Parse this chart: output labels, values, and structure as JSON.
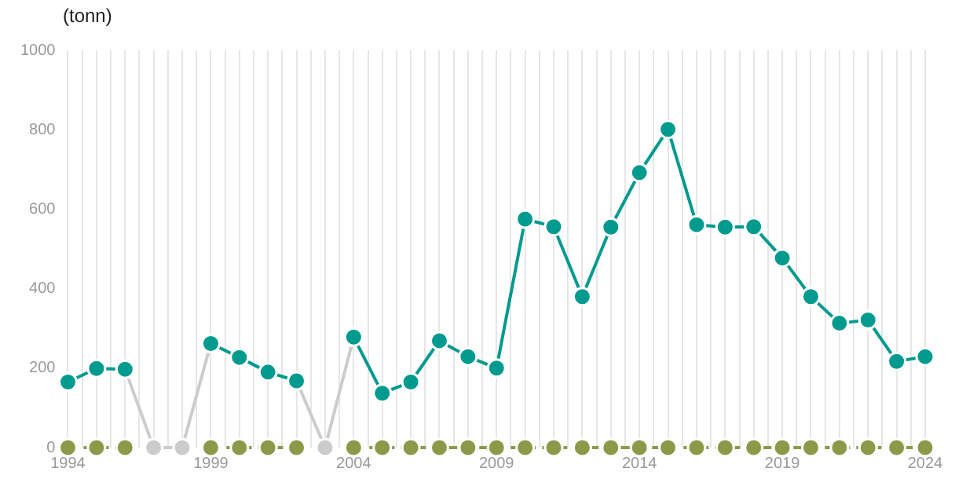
{
  "chart_data": {
    "type": "line",
    "ylabel": "(tonn)",
    "x": [
      1994,
      1995,
      1996,
      1997,
      1998,
      1999,
      2000,
      2001,
      2002,
      2003,
      2004,
      2005,
      2006,
      2007,
      2008,
      2009,
      2010,
      2011,
      2012,
      2013,
      2014,
      2015,
      2016,
      2017,
      2018,
      2019,
      2020,
      2021,
      2022,
      2023,
      2024
    ],
    "series": [
      {
        "color": "#8a9a48",
        "line_style": "dashed",
        "values": [
          0,
          0,
          0,
          null,
          null,
          0,
          0,
          0,
          0,
          null,
          0,
          0,
          0,
          0,
          0,
          0,
          0,
          0,
          0,
          0,
          0,
          0,
          0,
          0,
          0,
          0,
          0,
          0,
          0,
          0,
          0
        ]
      },
      {
        "color": "#cccccc",
        "line_style": "solid",
        "values": [
          null,
          null,
          197,
          0,
          0,
          262,
          null,
          null,
          168,
          0,
          278,
          null,
          null,
          null,
          null,
          null,
          null,
          null,
          null,
          null,
          null,
          null,
          null,
          null,
          null,
          null,
          null,
          null,
          null,
          null,
          null
        ]
      },
      {
        "color": "#009a8f",
        "line_style": "solid",
        "values": [
          165,
          199,
          197,
          null,
          null,
          262,
          227,
          190,
          168,
          null,
          278,
          137,
          165,
          269,
          229,
          200,
          575,
          556,
          380,
          555,
          692,
          801,
          561,
          555,
          556,
          477,
          380,
          313,
          321,
          217,
          229
        ]
      }
    ],
    "marker": "circle",
    "grid": "x",
    "legend": false,
    "xlim": [
      1994,
      2024
    ],
    "xticks": [
      1994,
      {
        "value": 1994.5,
        "label": null
      },
      {
        "value": 1995,
        "label": null
      },
      {
        "value": 1995.5,
        "label": null
      },
      {
        "value": 1996,
        "label": null
      },
      {
        "value": 1996.5,
        "label": null
      },
      {
        "value": 1997,
        "label": null
      },
      {
        "value": 1997.5,
        "label": null
      },
      {
        "value": 1998,
        "label": null
      },
      {
        "value": 1998.5,
        "label": null
      },
      1999,
      {
        "value": 1999.5,
        "label": null
      },
      {
        "value": 2000,
        "label": null
      },
      {
        "value": 2000.5,
        "label": null
      },
      {
        "value": 2001,
        "label": null
      },
      {
        "value": 2001.5,
        "label": null
      },
      {
        "value": 2002,
        "label": null
      },
      {
        "value": 2002.5,
        "label": null
      },
      {
        "value": 2003,
        "label": null
      },
      {
        "value": 2003.5,
        "label": null
      },
      2004,
      {
        "value": 2004.5,
        "label": null
      },
      {
        "value": 2005,
        "label": null
      },
      {
        "value": 2005.5,
        "label": null
      },
      {
        "value": 2006,
        "label": null
      },
      {
        "value": 2006.5,
        "label": null
      },
      {
        "value": 2007,
        "label": null
      },
      {
        "value": 2007.5,
        "label": null
      },
      {
        "value": 2008,
        "label": null
      },
      {
        "value": 2008.5,
        "label": null
      },
      2009,
      {
        "value": 2009.5,
        "label": null
      },
      {
        "value": 2010,
        "label": null
      },
      {
        "value": 2010.5,
        "label": null
      },
      {
        "value": 2011,
        "label": null
      },
      {
        "value": 2011.5,
        "label": null
      },
      {
        "value": 2012,
        "label": null
      },
      {
        "value": 2012.5,
        "label": null
      },
      {
        "value": 2013,
        "label": null
      },
      {
        "value": 2013.5,
        "label": null
      },
      2014,
      {
        "value": 2014.5,
        "label": null
      },
      {
        "value": 2015,
        "label": null
      },
      {
        "value": 2015.5,
        "label": null
      },
      {
        "value": 2016,
        "label": null
      },
      {
        "value": 2016.5,
        "label": null
      },
      {
        "value": 2017,
        "label": null
      },
      {
        "value": 2017.5,
        "label": null
      },
      {
        "value": 2018,
        "label": null
      },
      {
        "value": 2018.5,
        "label": null
      },
      2019,
      {
        "value": 2019.5,
        "label": null
      },
      {
        "value": 2020,
        "label": null
      },
      {
        "value": 2020.5,
        "label": null
      },
      {
        "value": 2021,
        "label": null
      },
      {
        "value": 2021.5,
        "label": null
      },
      {
        "value": 2022,
        "label": null
      },
      {
        "value": 2022.5,
        "label": null
      },
      {
        "value": 2023,
        "label": null
      },
      {
        "value": 2023.5,
        "label": null
      },
      2024
    ],
    "ylim": [
      0,
      1000
    ],
    "yticks": [
      0,
      200,
      400,
      600,
      800,
      1000
    ]
  }
}
